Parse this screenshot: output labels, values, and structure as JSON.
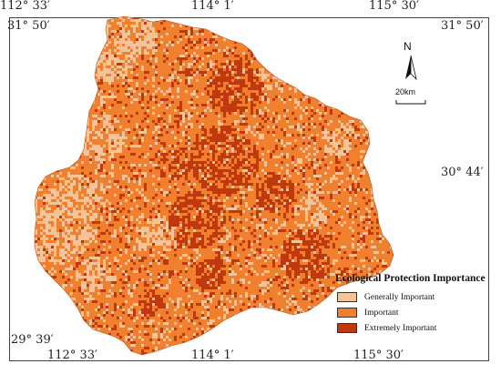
{
  "coordinates": {
    "top_lon_left": "112° 33′",
    "top_lon_mid": "114° 1′",
    "top_lon_right": "115° 30′",
    "left_lat_top": "31° 50′",
    "right_lat_top": "31° 50′",
    "right_lat_mid": "30° 44′",
    "left_lat_bottom": "29° 39′",
    "bottom_lon_left": "112° 33′",
    "bottom_lon_mid": "114° 1′",
    "bottom_lon_right": "115° 30′"
  },
  "north_arrow": {
    "label": "N",
    "icon": "north-arrow-icon"
  },
  "scale": {
    "label": "20km"
  },
  "legend": {
    "title": "Ecological Protection Importance",
    "items": [
      {
        "label": "Generally Important",
        "color": "#F3C49A"
      },
      {
        "label": "Important",
        "color": "#F07F2E"
      },
      {
        "label": "Extremely Important",
        "color": "#C0390E"
      }
    ]
  },
  "colors": {
    "base": "#F07F2E",
    "light": "#F3C49A",
    "dark": "#C0390E",
    "frame": "#444444"
  }
}
